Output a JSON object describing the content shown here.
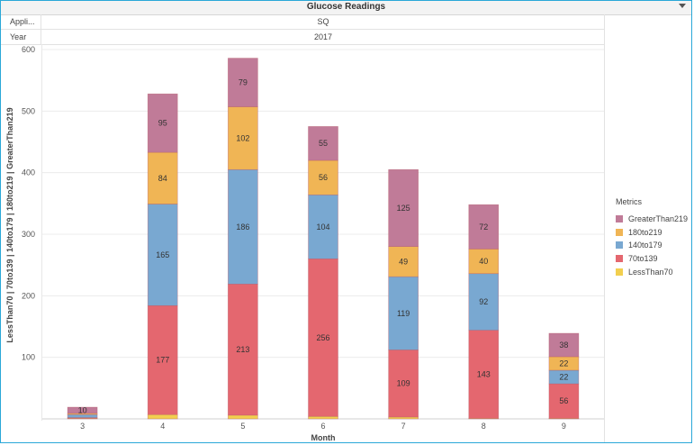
{
  "header": {
    "title": "Glucose Readings"
  },
  "filters": [
    {
      "label": "Appli...",
      "value": "SQ"
    },
    {
      "label": "Year",
      "value": "2017"
    }
  ],
  "legend": {
    "title": "Metrics"
  },
  "chart_data": {
    "type": "bar",
    "stacked": true,
    "xlabel": "Month",
    "ylabel": "LessThan70  |  70to139  |  140to179  |  180to219  |  GreaterThan219",
    "ylim": [
      0,
      600
    ],
    "yticks": [
      100,
      200,
      300,
      400,
      500,
      600
    ],
    "categories": [
      "3",
      "4",
      "5",
      "6",
      "7",
      "8",
      "9"
    ],
    "series": [
      {
        "name": "LessThan70",
        "color": "#f2cf4f",
        "values": [
          1,
          7,
          6,
          4,
          3,
          1,
          1
        ]
      },
      {
        "name": "70to139",
        "color": "#e4676f",
        "values": [
          1,
          177,
          213,
          256,
          109,
          143,
          56
        ]
      },
      {
        "name": "140to179",
        "color": "#79a8d1",
        "values": [
          5,
          165,
          186,
          104,
          119,
          92,
          22
        ]
      },
      {
        "name": "180to219",
        "color": "#f0b555",
        "values": [
          2,
          84,
          102,
          56,
          49,
          40,
          22
        ]
      },
      {
        "name": "GreaterThan219",
        "color": "#c07b98",
        "values": [
          10,
          95,
          79,
          55,
          125,
          72,
          38
        ]
      }
    ],
    "data_labels_min": 10,
    "grid": true,
    "legend_position": "right"
  }
}
